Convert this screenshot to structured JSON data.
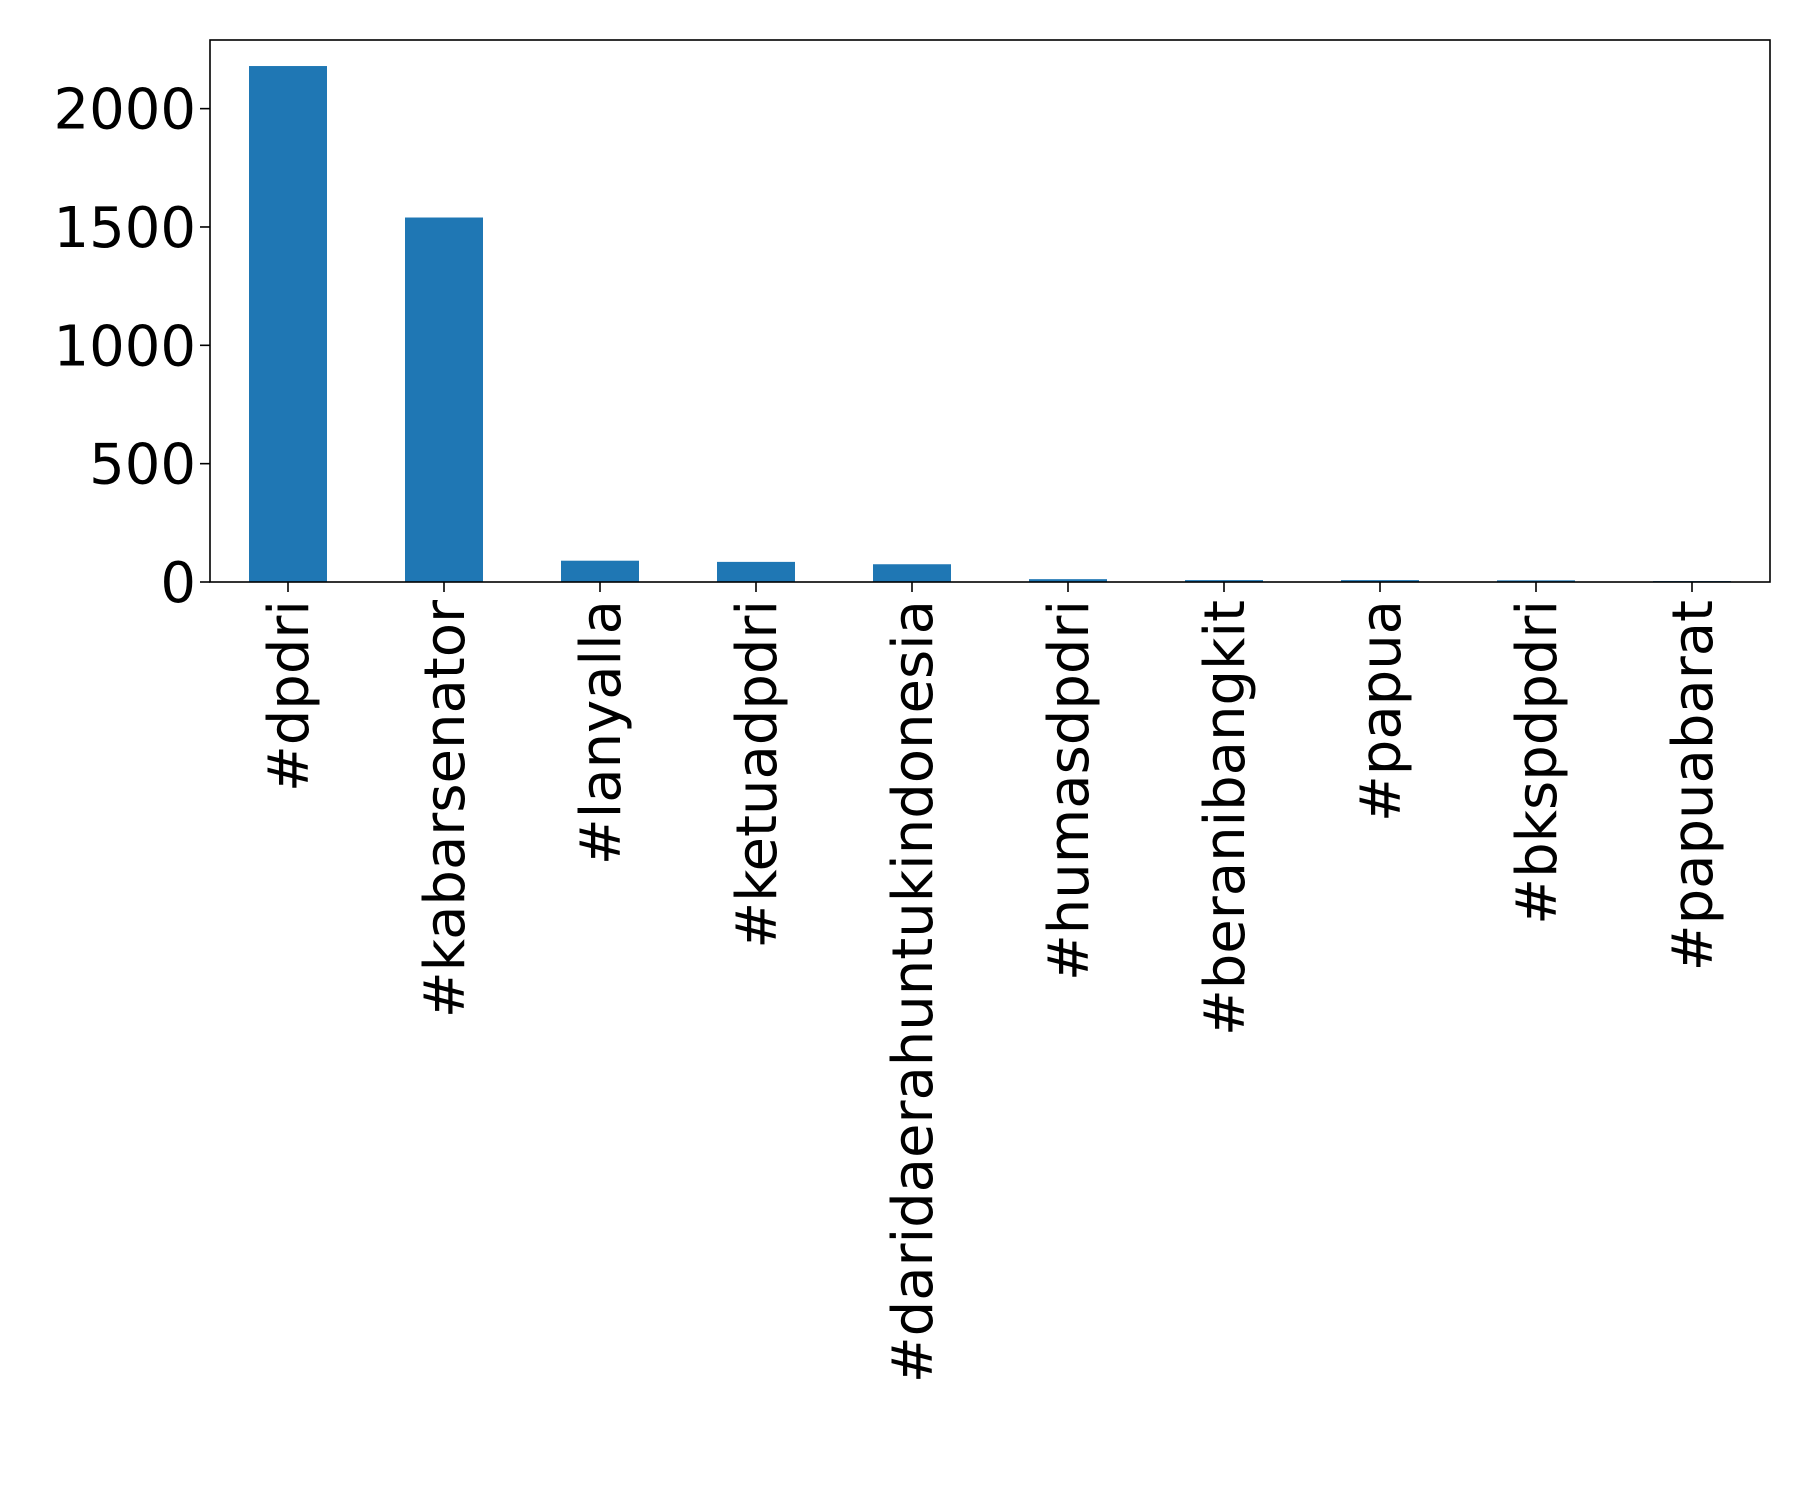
{
  "chart_data": {
    "type": "bar",
    "title": "",
    "xlabel": "",
    "ylabel": "",
    "categories": [
      "#dpdri",
      "#kabarsenator",
      "#lanyalla",
      "#ketuadpdri",
      "#daridaerahuntukindonesia",
      "#humasdpdri",
      "#beranibangkit",
      "#papua",
      "#bkspdpdri",
      "#papuabarat"
    ],
    "values": [
      2180,
      1540,
      90,
      85,
      75,
      12,
      8,
      8,
      7,
      4
    ],
    "ylim": [
      0,
      2290
    ],
    "yticks": [
      0,
      500,
      1000,
      1500,
      2000
    ],
    "bar_color": "#1f77b4",
    "grid": false,
    "legend": "none"
  }
}
